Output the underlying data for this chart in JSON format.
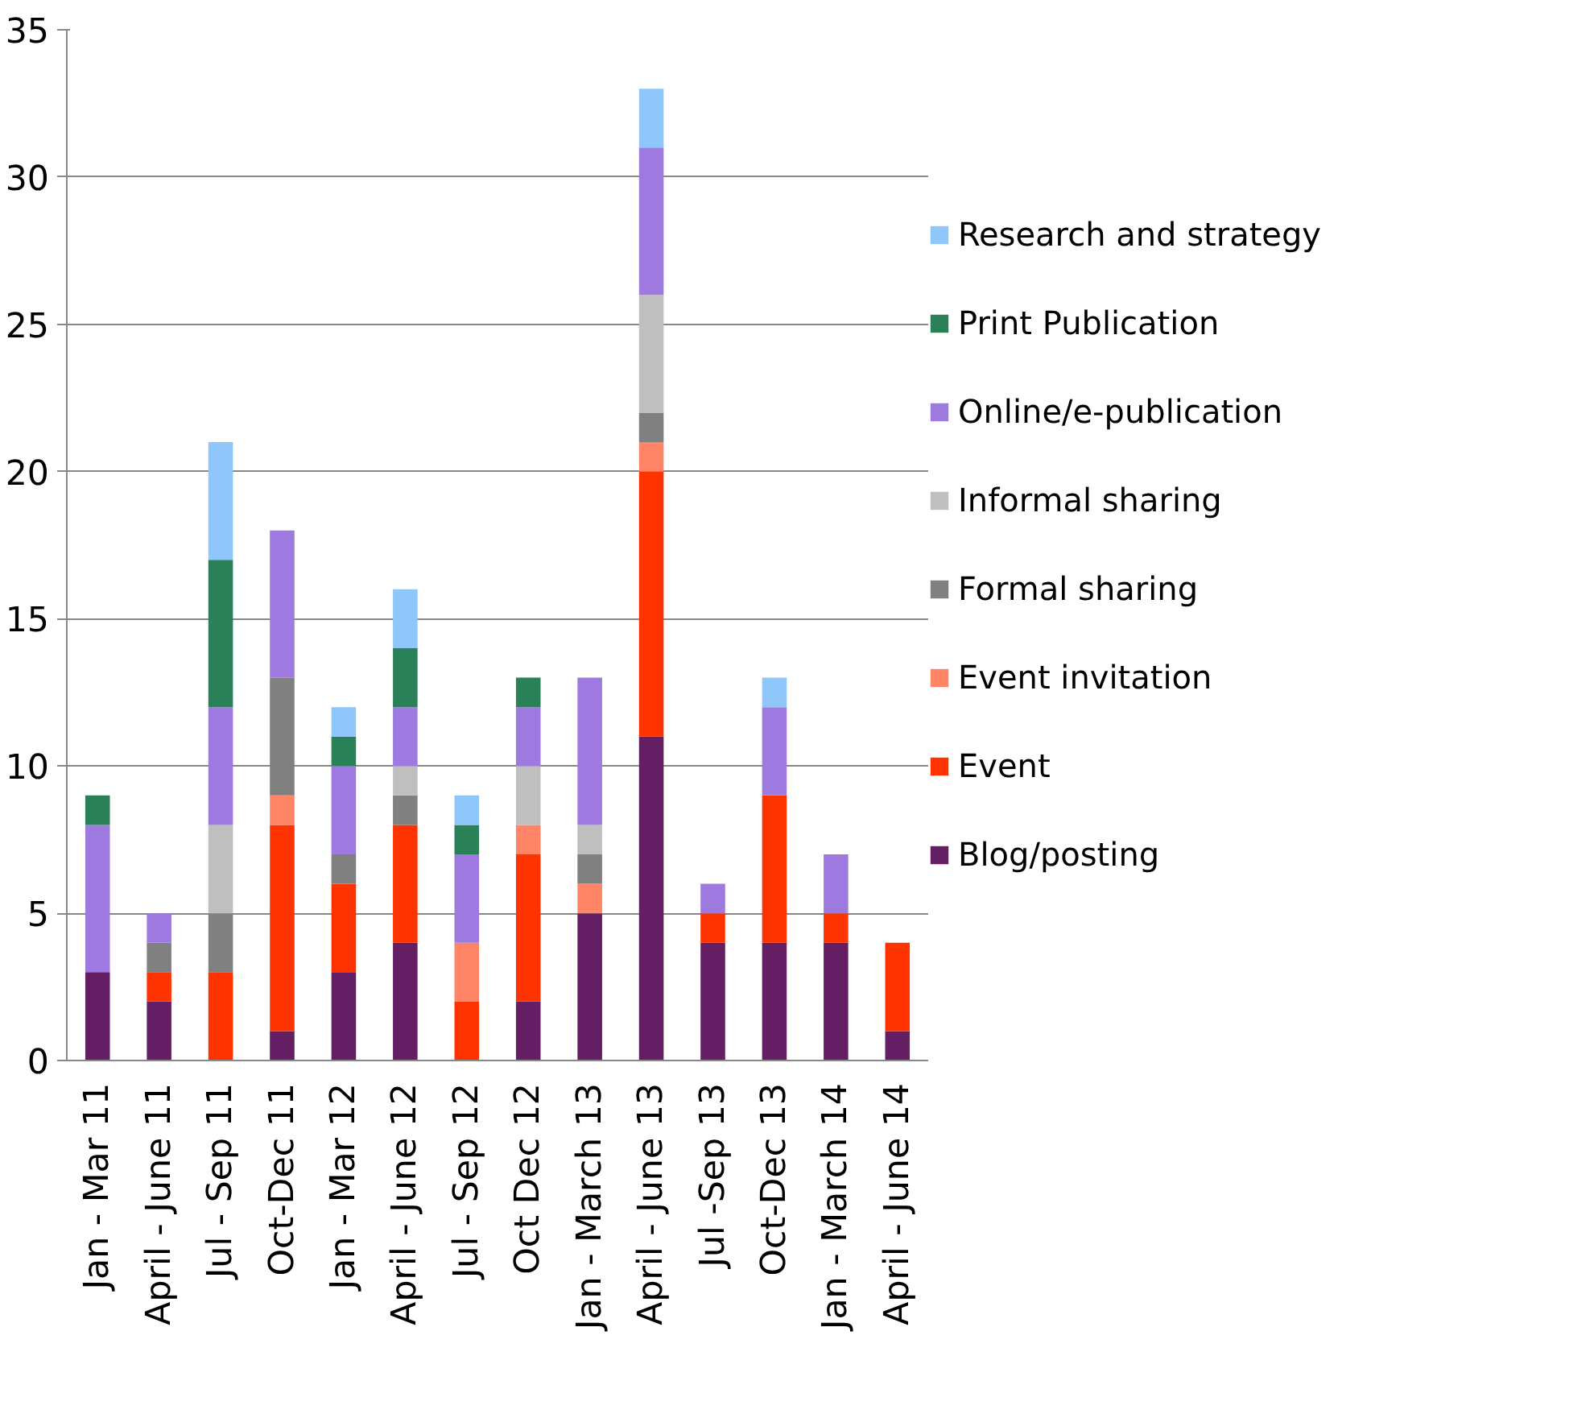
{
  "chart_data": {
    "type": "bar",
    "stacked": true,
    "categories": [
      "Jan - Mar 11",
      "April - June 11",
      "Jul - Sep 11",
      "Oct-Dec 11",
      "Jan - Mar 12",
      "April - June 12",
      "Jul - Sep 12",
      "Oct Dec 12",
      "Jan - March 13",
      "April - June 13",
      "Jul -Sep 13",
      "Oct-Dec 13",
      "Jan - March 14",
      "April - June 14"
    ],
    "series": [
      {
        "name": "Blog/posting",
        "color": "#641e64",
        "values": [
          3,
          2,
          0,
          1,
          3,
          4,
          0,
          2,
          5,
          11,
          4,
          4,
          4,
          1
        ]
      },
      {
        "name": "Event",
        "color": "#ff3300",
        "values": [
          0,
          1,
          3,
          7,
          3,
          4,
          2,
          5,
          0,
          9,
          1,
          5,
          1,
          3
        ]
      },
      {
        "name": "Event invitation",
        "color": "#ff8566",
        "values": [
          0,
          0,
          0,
          1,
          0,
          0,
          2,
          1,
          1,
          1,
          0,
          0,
          0,
          0
        ]
      },
      {
        "name": "Formal sharing",
        "color": "#808080",
        "values": [
          0,
          1,
          2,
          4,
          1,
          1,
          0,
          0,
          1,
          1,
          0,
          0,
          0,
          0
        ]
      },
      {
        "name": "Informal sharing",
        "color": "#bfbfbf",
        "values": [
          0,
          0,
          3,
          0,
          0,
          1,
          0,
          2,
          1,
          4,
          0,
          0,
          0,
          0
        ]
      },
      {
        "name": "Online/e-publication",
        "color": "#9e7ae0",
        "values": [
          5,
          1,
          4,
          5,
          3,
          2,
          3,
          2,
          5,
          5,
          1,
          3,
          2,
          0
        ]
      },
      {
        "name": "Print Publication",
        "color": "#2a8057",
        "values": [
          1,
          0,
          5,
          0,
          1,
          2,
          1,
          1,
          0,
          0,
          0,
          0,
          0,
          0
        ]
      },
      {
        "name": "Research and strategy",
        "color": "#8fc7fa",
        "values": [
          0,
          0,
          4,
          0,
          1,
          2,
          1,
          0,
          0,
          2,
          0,
          1,
          0,
          0
        ]
      }
    ],
    "ylim": [
      0,
      35
    ],
    "yticks": [
      0,
      5,
      10,
      15,
      20,
      25,
      30,
      35
    ],
    "grid": "y",
    "legend": "right"
  }
}
